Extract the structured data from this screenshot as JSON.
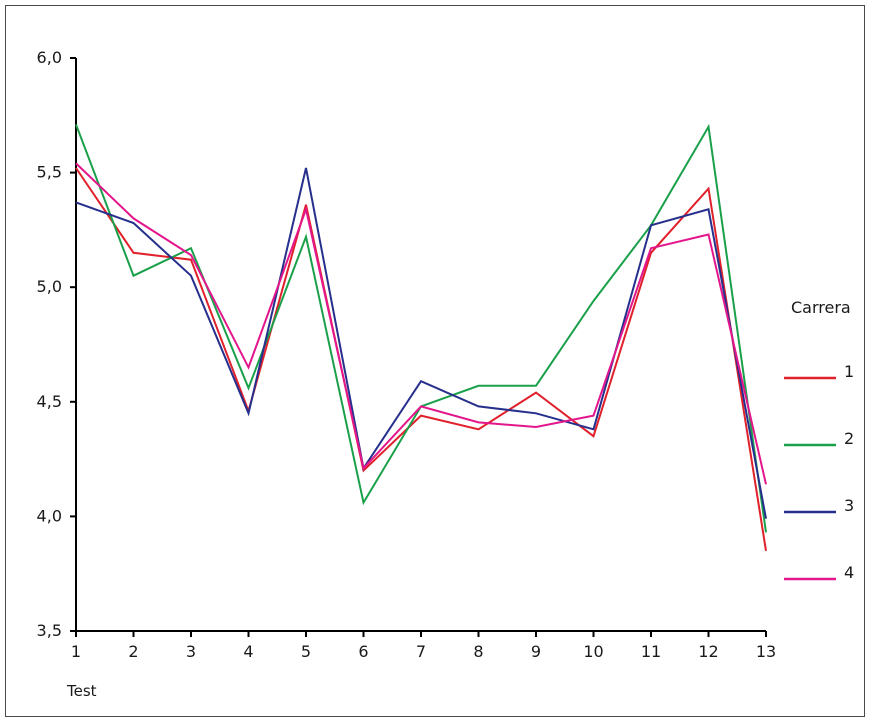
{
  "chart_data": {
    "type": "line",
    "title": "",
    "xlabel": "Test",
    "ylabel": "",
    "x": [
      1,
      2,
      3,
      4,
      5,
      6,
      7,
      8,
      9,
      10,
      11,
      12,
      13
    ],
    "x_tick_labels": [
      "1",
      "2",
      "3",
      "4",
      "5",
      "6",
      "7",
      "8",
      "9",
      "10",
      "11",
      "12",
      "13"
    ],
    "y_tick_labels": [
      "3,5",
      "4,0",
      "4,5",
      "5,0",
      "5,5",
      "6,0"
    ],
    "y_ticks": [
      3.5,
      4.0,
      4.5,
      5.0,
      5.5,
      6.0
    ],
    "ylim": [
      3.5,
      6.0
    ],
    "xlim": [
      1,
      13
    ],
    "grid": false,
    "legend": {
      "title": "Carrera",
      "placement": "right"
    },
    "series": [
      {
        "name": "1",
        "color": "#e0202a",
        "values": [
          5.52,
          5.15,
          5.12,
          4.46,
          5.36,
          4.2,
          4.44,
          4.38,
          4.54,
          4.35,
          5.15,
          5.43,
          3.85
        ]
      },
      {
        "name": "2",
        "color": "#1aa04a",
        "values": [
          5.71,
          5.05,
          5.17,
          4.56,
          5.22,
          4.06,
          4.48,
          4.57,
          4.57,
          4.94,
          5.27,
          5.7,
          3.93
        ]
      },
      {
        "name": "3",
        "color": "#262f8c",
        "values": [
          5.37,
          5.28,
          5.05,
          4.45,
          5.52,
          4.21,
          4.59,
          4.48,
          4.45,
          4.38,
          5.27,
          5.34,
          3.99
        ]
      },
      {
        "name": "4",
        "color": "#e3168c",
        "values": [
          5.54,
          5.3,
          5.14,
          4.65,
          5.34,
          4.21,
          4.48,
          4.41,
          4.39,
          4.44,
          5.17,
          5.23,
          4.14
        ]
      }
    ]
  }
}
